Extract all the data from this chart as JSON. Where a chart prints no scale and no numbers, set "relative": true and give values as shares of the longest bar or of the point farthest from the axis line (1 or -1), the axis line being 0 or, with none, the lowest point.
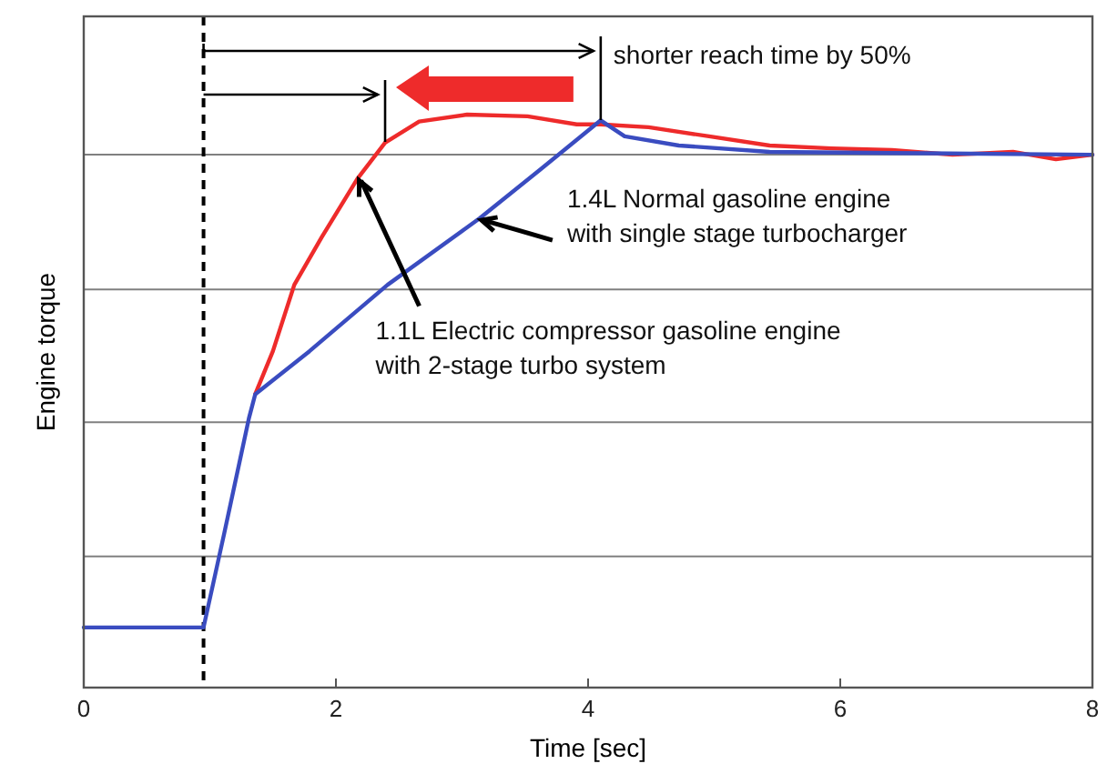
{
  "chart_data": {
    "type": "line",
    "relative": true,
    "xlabel": "Time [sec]",
    "ylabel": "Engine torque",
    "xlim": [
      0,
      8
    ],
    "xticks": [
      0,
      2,
      4,
      6,
      8
    ],
    "line_style": "solid",
    "marker": "none",
    "series": [
      {
        "color": "#ee2b2b",
        "x": [
          1.36,
          1.5,
          1.67,
          1.89,
          2.17,
          2.39,
          2.66,
          3.04,
          3.52,
          3.91,
          4.1,
          4.48,
          4.96,
          5.44,
          5.93,
          6.41,
          6.89,
          7.37,
          7.71,
          8
        ],
        "values": [
          0.512,
          0.587,
          0.703,
          0.787,
          0.888,
          0.951,
          0.988,
          1,
          0.997,
          0.983,
          0.983,
          0.978,
          0.962,
          0.946,
          0.941,
          0.938,
          0.93,
          0.935,
          0.922,
          0.93
        ]
      },
      {
        "color": "#3a4cc0",
        "x": [
          0,
          0.95,
          1.115,
          1.31,
          1.36,
          1.79,
          2.41,
          3.14,
          3.62,
          4.1,
          4.29,
          4.72,
          5.44,
          6.41,
          8
        ],
        "values": [
          0.105,
          0.105,
          0.27,
          0.47,
          0.512,
          0.587,
          0.703,
          0.819,
          0.904,
          0.99,
          0.962,
          0.946,
          0.935,
          0.933,
          0.93
        ]
      }
    ],
    "ref_lines": [
      {
        "axis": "y",
        "value": 0.229,
        "color": "#808080"
      },
      {
        "axis": "y",
        "value": 0.463,
        "color": "#808080"
      },
      {
        "axis": "y",
        "value": 0.695,
        "color": "#808080"
      },
      {
        "axis": "y",
        "value": 0.93,
        "color": "#808080"
      },
      {
        "axis": "x",
        "value": 0.95,
        "color": "#000000",
        "line_style": "dashed"
      }
    ],
    "annotations": [
      "shorter reach time by 50%",
      {
        "text": "1.4L Normal gasoline engine\nwith single stage turbocharger",
        "x": 3.14,
        "y": 0.819
      },
      {
        "text": "1.1L Electric compressor gasoline engine\nwith 2-stage turbo system",
        "x": 2.17,
        "y": 0.888
      }
    ]
  }
}
